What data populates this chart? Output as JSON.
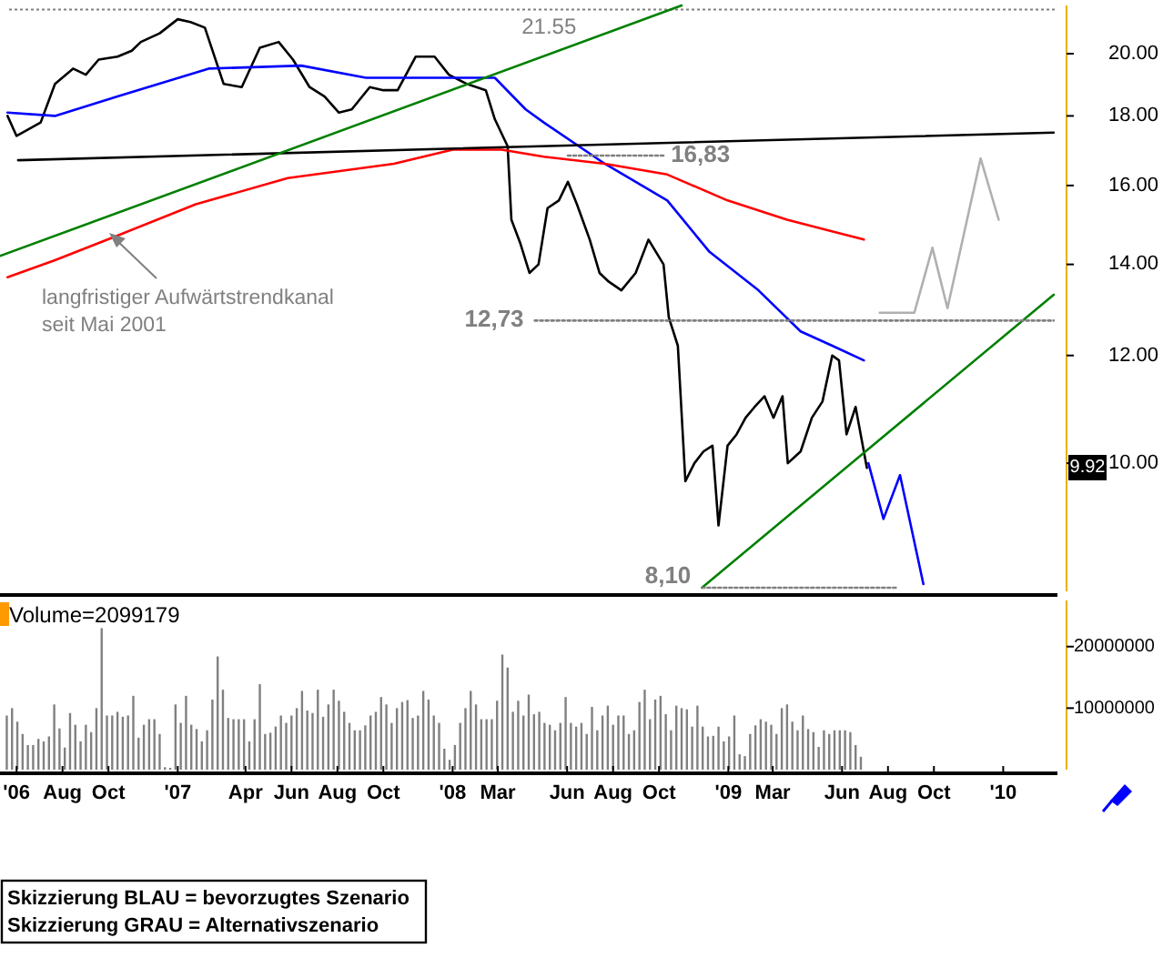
{
  "chart_data": [
    {
      "type": "line",
      "log": true,
      "tick_labels": "y",
      "xlim": [
        "2006-05-10",
        "2010-03-14"
      ],
      "ylim": [
        8.05,
        21.7
      ],
      "yticks": [
        {
          "value": 10,
          "label": "10.00"
        },
        {
          "value": 12,
          "label": "12.00"
        },
        {
          "value": 14,
          "label": "14.00"
        },
        {
          "value": 16,
          "label": "16.00"
        },
        {
          "value": 18,
          "label": "18.00"
        },
        {
          "value": 20,
          "label": "20.00"
        }
      ],
      "ref_lines": [
        {
          "axis": "y",
          "value": 21.55,
          "label": "21.55",
          "color": "#808080",
          "line_style": "dotted"
        }
      ],
      "series": [
        {
          "color": "#000000",
          "x": [
            "2006-05-20",
            "2006-06-01",
            "2006-07-03",
            "2006-07-22",
            "2006-08-15",
            "2006-09-01",
            "2006-09-18",
            "2006-10-13",
            "2006-11-01",
            "2006-11-13",
            "2006-12-08",
            "2007-01-01",
            "2007-01-18",
            "2007-02-06",
            "2007-03-03",
            "2007-03-27",
            "2007-04-20",
            "2007-05-15",
            "2007-06-03",
            "2007-06-25",
            "2007-07-15",
            "2007-08-03",
            "2007-08-20",
            "2007-09-13",
            "2007-10-01",
            "2007-10-20",
            "2007-11-13",
            "2007-12-08",
            "2007-12-27",
            "2008-01-20",
            "2008-02-14",
            "2008-02-26",
            "2008-03-14",
            "2008-03-19",
            "2008-03-31",
            "2008-04-12",
            "2008-04-24",
            "2008-05-06",
            "2008-05-21",
            "2008-06-02",
            "2008-06-14",
            "2008-07-01",
            "2008-07-14",
            "2008-07-26",
            "2008-08-12",
            "2008-08-31",
            "2008-09-17",
            "2008-10-07",
            "2008-10-14",
            "2008-10-26",
            "2008-11-05",
            "2008-11-17",
            "2008-11-29",
            "2008-12-11",
            "2008-12-19",
            "2008-12-31",
            "2009-01-12",
            "2009-01-24",
            "2009-02-05",
            "2009-02-18",
            "2009-03-02",
            "2009-03-14",
            "2009-03-21",
            "2009-04-07",
            "2009-04-22",
            "2009-05-06",
            "2009-05-19",
            "2009-05-28",
            "2009-06-07",
            "2009-06-19",
            "2009-07-04"
          ],
          "values": [
            18.0,
            17.4,
            17.8,
            19.0,
            19.5,
            19.3,
            19.8,
            19.9,
            20.1,
            20.4,
            20.7,
            21.2,
            21.1,
            20.9,
            19.0,
            18.9,
            20.2,
            20.4,
            19.8,
            18.9,
            18.6,
            18.1,
            18.2,
            18.9,
            18.8,
            18.8,
            19.9,
            19.9,
            19.3,
            19.0,
            18.8,
            17.9,
            17.1,
            15.1,
            14.5,
            13.8,
            14.0,
            15.4,
            15.6,
            16.1,
            15.5,
            14.6,
            13.8,
            13.6,
            13.4,
            13.8,
            14.6,
            14.0,
            12.8,
            12.2,
            9.7,
            10.0,
            10.2,
            10.3,
            9.0,
            10.3,
            10.5,
            10.8,
            11.0,
            11.2,
            10.8,
            11.2,
            10.0,
            10.2,
            10.8,
            11.1,
            12.0,
            11.9,
            10.5,
            11.0,
            9.92
          ]
        },
        {
          "color": "#0000ff",
          "x": [
            "2006-05-20",
            "2006-07-22",
            "2006-10-13",
            "2007-02-11",
            "2007-06-14",
            "2007-09-08",
            "2007-11-20",
            "2008-02-26",
            "2008-04-07",
            "2008-05-01",
            "2008-07-21",
            "2008-10-12",
            "2008-12-07",
            "2009-02-10",
            "2009-04-07",
            "2009-05-19",
            "2009-06-30"
          ],
          "values": [
            18.1,
            18.0,
            18.6,
            19.5,
            19.6,
            19.2,
            19.2,
            19.2,
            18.2,
            17.8,
            16.6,
            15.6,
            14.3,
            13.4,
            12.5,
            12.2,
            11.9
          ]
        },
        {
          "color": "#ff0000",
          "x": [
            "2006-05-20",
            "2006-07-22",
            "2006-10-13",
            "2007-01-25",
            "2007-05-27",
            "2007-10-15",
            "2008-01-01",
            "2008-03-06",
            "2008-05-01",
            "2008-07-21",
            "2008-10-12",
            "2008-12-31",
            "2009-03-20",
            "2009-06-30"
          ],
          "values": [
            13.7,
            14.1,
            14.7,
            15.5,
            16.2,
            16.6,
            17.0,
            17.0,
            16.8,
            16.6,
            16.3,
            15.6,
            15.1,
            14.6
          ]
        },
        {
          "color": "#000000",
          "x": [
            "2006-06-03",
            "2010-03-09"
          ],
          "values": [
            16.7,
            17.5
          ]
        },
        {
          "color": "#008000",
          "x": [
            "2006-05-10",
            "2008-10-31"
          ],
          "values": [
            14.2,
            21.7
          ]
        },
        {
          "color": "#008000",
          "x": [
            "2008-11-27",
            "2010-03-09"
          ],
          "values": [
            8.1,
            13.3
          ]
        },
        {
          "color": "#808080",
          "line_style": "dotted",
          "x": [
            "2008-04-19",
            "2010-03-09"
          ],
          "values": [
            12.73,
            12.73
          ]
        },
        {
          "color": "#808080",
          "line_style": "dotted",
          "x": [
            "2008-06-02",
            "2008-10-07"
          ],
          "values": [
            16.83,
            16.83
          ]
        },
        {
          "color": "#808080",
          "line_style": "dotted",
          "x": [
            "2008-11-27",
            "2009-08-14"
          ],
          "values": [
            8.1,
            8.1
          ]
        },
        {
          "color": "#0000ff",
          "x": [
            "2009-07-06",
            "2009-07-26",
            "2009-08-17",
            "2009-09-17"
          ],
          "values": [
            10.0,
            9.1,
            9.8,
            8.15
          ]
        },
        {
          "color": "#b0b0b0",
          "x": [
            "2009-07-21",
            "2009-09-05",
            "2009-09-29",
            "2009-10-19",
            "2009-12-02",
            "2009-12-26"
          ],
          "values": [
            12.9,
            12.9,
            14.4,
            13.0,
            16.75,
            15.1
          ]
        }
      ],
      "annotations": [
        "langfristiger Aufwärtstrendkanal\nseit Mai 2001",
        {
          "text": "12,73",
          "x": "2008-04-19",
          "y": 12.73
        },
        {
          "text": "16,83",
          "x": "2008-10-07",
          "y": 16.83
        },
        {
          "text": "8,10",
          "x": "2008-11-27",
          "y": 8.1
        },
        "9.92"
      ]
    },
    {
      "type": "bar",
      "title": "Volume=2099179",
      "color": "#808080",
      "xlim": [
        "2006-05-10",
        "2010-03-14"
      ],
      "ylim": [
        0,
        27500000
      ],
      "yticks": [
        10000000,
        20000000
      ],
      "xticks": [
        {
          "value": "2006-06",
          "label": "'06"
        },
        {
          "value": "2006-08",
          "label": "Aug"
        },
        {
          "value": "2006-10",
          "label": "Oct"
        },
        {
          "value": "2007-01",
          "label": "'07"
        },
        {
          "value": "2007-04",
          "label": "Apr"
        },
        {
          "value": "2007-06",
          "label": "Jun"
        },
        {
          "value": "2007-08",
          "label": "Aug"
        },
        {
          "value": "2007-10",
          "label": "Oct"
        },
        {
          "value": "2008-01",
          "label": "'08"
        },
        {
          "value": "2008-03",
          "label": "Mar"
        },
        {
          "value": "2008-06",
          "label": "Jun"
        },
        {
          "value": "2008-08",
          "label": "Aug"
        },
        {
          "value": "2008-10",
          "label": "Oct"
        },
        {
          "value": "2009-01",
          "label": "'09"
        },
        {
          "value": "2009-03",
          "label": "Mar"
        },
        {
          "value": "2009-06",
          "label": "Jun"
        },
        {
          "value": "2009-08",
          "label": "Aug"
        },
        {
          "value": "2009-10",
          "label": "Oct"
        },
        {
          "value": "2010-01",
          "label": "'10"
        }
      ],
      "x": [
        "2006-05-19",
        "2006-05-26",
        "2006-06-02",
        "2006-06-09",
        "2006-06-16",
        "2006-06-23",
        "2006-06-30",
        "2006-07-07",
        "2006-07-14",
        "2006-07-21",
        "2006-07-28",
        "2006-08-04",
        "2006-08-11",
        "2006-08-18",
        "2006-08-25",
        "2006-09-01",
        "2006-09-08",
        "2006-09-15",
        "2006-09-22",
        "2006-09-29",
        "2006-10-06",
        "2006-10-13",
        "2006-10-20",
        "2006-10-27",
        "2006-11-03",
        "2006-11-10",
        "2006-11-17",
        "2006-11-24",
        "2006-12-01",
        "2006-12-08",
        "2006-12-15",
        "2006-12-22",
        "2006-12-29",
        "2007-01-05",
        "2007-01-12",
        "2007-01-19",
        "2007-01-26",
        "2007-02-02",
        "2007-02-09",
        "2007-02-16",
        "2007-02-23",
        "2007-03-02",
        "2007-03-09",
        "2007-03-16",
        "2007-03-23",
        "2007-03-30",
        "2007-04-06",
        "2007-04-13",
        "2007-04-20",
        "2007-04-27",
        "2007-05-04",
        "2007-05-11",
        "2007-05-18",
        "2007-05-25",
        "2007-06-01",
        "2007-06-08",
        "2007-06-15",
        "2007-06-22",
        "2007-06-29",
        "2007-07-06",
        "2007-07-13",
        "2007-07-20",
        "2007-07-27",
        "2007-08-03",
        "2007-08-10",
        "2007-08-17",
        "2007-08-24",
        "2007-08-31",
        "2007-09-07",
        "2007-09-14",
        "2007-09-21",
        "2007-09-28",
        "2007-10-05",
        "2007-10-12",
        "2007-10-19",
        "2007-10-26",
        "2007-11-02",
        "2007-11-09",
        "2007-11-16",
        "2007-11-23",
        "2007-11-30",
        "2007-12-07",
        "2007-12-14",
        "2007-12-21",
        "2007-12-28",
        "2008-01-04",
        "2008-01-11",
        "2008-01-18",
        "2008-01-25",
        "2008-02-01",
        "2008-02-08",
        "2008-02-15",
        "2008-02-22",
        "2008-02-29",
        "2008-03-07",
        "2008-03-14",
        "2008-03-21",
        "2008-03-28",
        "2008-04-04",
        "2008-04-11",
        "2008-04-18",
        "2008-04-25",
        "2008-05-02",
        "2008-05-09",
        "2008-05-16",
        "2008-05-23",
        "2008-05-30",
        "2008-06-06",
        "2008-06-13",
        "2008-06-20",
        "2008-06-27",
        "2008-07-04",
        "2008-07-11",
        "2008-07-18",
        "2008-07-25",
        "2008-08-01",
        "2008-08-08",
        "2008-08-15",
        "2008-08-22",
        "2008-08-29",
        "2008-09-05",
        "2008-09-12",
        "2008-09-19",
        "2008-09-26",
        "2008-10-03",
        "2008-10-10",
        "2008-10-17",
        "2008-10-24",
        "2008-10-31",
        "2008-11-07",
        "2008-11-14",
        "2008-11-21",
        "2008-11-28",
        "2008-12-05",
        "2008-12-12",
        "2008-12-19",
        "2008-12-26",
        "2009-01-02",
        "2009-01-09",
        "2009-01-16",
        "2009-01-23",
        "2009-01-30",
        "2009-02-06",
        "2009-02-13",
        "2009-02-20",
        "2009-02-27",
        "2009-03-06",
        "2009-03-13",
        "2009-03-20",
        "2009-03-27",
        "2009-04-03",
        "2009-04-10",
        "2009-04-17",
        "2009-04-24",
        "2009-05-01",
        "2009-05-08",
        "2009-05-15",
        "2009-05-22",
        "2009-05-29",
        "2009-06-05",
        "2009-06-12",
        "2009-06-19",
        "2009-06-26"
      ],
      "values": [
        8800000,
        10000000,
        7800000,
        5800000,
        4000000,
        4000000,
        5000000,
        4600000,
        5400000,
        10600000,
        6700000,
        3600000,
        9200000,
        7300000,
        4600000,
        7300000,
        6100000,
        10000000,
        23000000,
        8800000,
        8800000,
        9400000,
        8600000,
        8800000,
        12000000,
        5200000,
        7300000,
        8200000,
        8200000,
        5800000,
        400000,
        300000,
        10600000,
        7600000,
        12000000,
        7300000,
        6600000,
        4600000,
        6400000,
        11400000,
        18400000,
        13000000,
        8400000,
        8200000,
        8200000,
        8200000,
        4600000,
        8200000,
        13900000,
        5800000,
        6000000,
        7000000,
        8800000,
        7600000,
        8800000,
        10000000,
        12800000,
        9600000,
        9200000,
        13000000,
        8600000,
        10600000,
        13000000,
        11200000,
        9400000,
        7600000,
        6400000,
        6400000,
        7200000,
        8800000,
        9400000,
        11800000,
        10600000,
        7600000,
        10000000,
        11000000,
        11300000,
        8400000,
        8800000,
        12800000,
        11400000,
        8800000,
        7600000,
        3400000,
        1600000,
        4000000,
        7600000,
        10000000,
        12800000,
        10600000,
        8200000,
        8200000,
        8200000,
        11200000,
        18700000,
        16600000,
        9400000,
        11200000,
        8800000,
        12200000,
        9000000,
        9400000,
        7600000,
        7300000,
        6400000,
        7600000,
        11800000,
        7600000,
        7000000,
        7600000,
        5800000,
        10200000,
        6400000,
        8800000,
        10400000,
        7300000,
        8800000,
        8800000,
        5800000,
        6400000,
        11000000,
        13000000,
        8200000,
        11400000,
        12000000,
        9000000,
        6400000,
        10400000,
        10000000,
        9800000,
        7000000,
        10400000,
        7000000,
        5400000,
        5500000,
        7000000,
        4600000,
        5400000,
        8800000,
        2500000,
        2200000,
        5800000,
        7200000,
        8200000,
        7800000,
        7300000,
        5800000,
        10000000,
        10600000,
        7800000,
        6400000,
        8800000,
        6600000,
        6100000,
        3700000,
        6400000,
        5800000,
        6400000,
        6400000,
        6400000,
        6100000,
        4000000,
        2099179
      ],
      "annotations": [
        "Skizzierung BLAU = bevorzugtes Szenario",
        "Skizzierung GRAU = Alternativszenario"
      ]
    }
  ]
}
